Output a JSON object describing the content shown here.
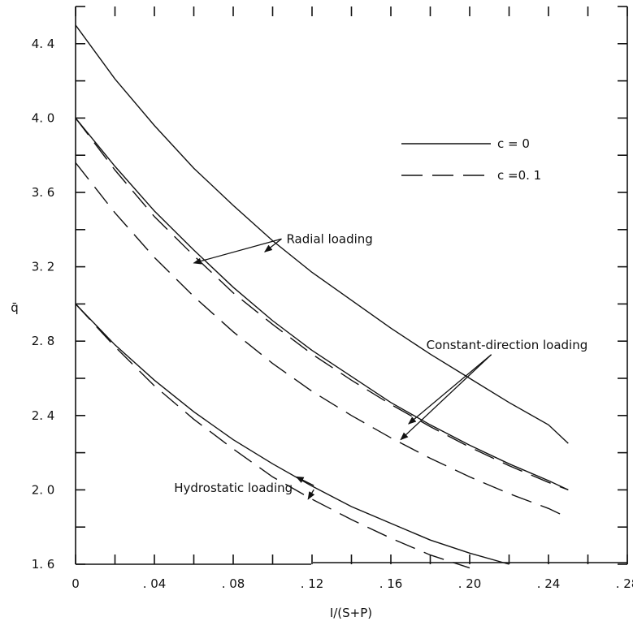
{
  "chart_data": {
    "type": "line",
    "xlabel": "I/(S+P)",
    "ylabel": "q̄",
    "xlim": [
      0,
      0.28
    ],
    "ylim": [
      1.6,
      4.6
    ],
    "x_ticks": [
      0,
      0.04,
      0.08,
      0.12,
      0.16,
      0.2,
      0.24,
      0.28
    ],
    "x_tick_labels": [
      "0",
      ". 04",
      ". 08",
      ". 12",
      ". 16",
      ". 20",
      ". 24",
      ". 28"
    ],
    "y_ticks": [
      1.6,
      2.0,
      2.4,
      2.8,
      3.2,
      3.6,
      4.0,
      4.4
    ],
    "y_tick_labels": [
      "1. 6",
      "2. 0",
      "2. 4",
      "2. 8",
      "3. 2",
      "3. 6",
      "4. 0",
      "4. 4"
    ],
    "grid": false,
    "legend": {
      "position": "top-right",
      "entries": [
        {
          "label": "c = 0",
          "style": "solid"
        },
        {
          "label": "c =0. 1",
          "style": "dashed"
        }
      ]
    },
    "series": [
      {
        "style": "solid",
        "x": [
          0,
          0.02,
          0.04,
          0.06,
          0.08,
          0.1,
          0.12,
          0.14,
          0.16,
          0.18,
          0.2,
          0.22,
          0.24,
          0.25
        ],
        "y": [
          4.5,
          4.21,
          3.96,
          3.73,
          3.53,
          3.34,
          3.17,
          3.02,
          2.87,
          2.73,
          2.6,
          2.47,
          2.35,
          2.25
        ]
      },
      {
        "style": "solid",
        "x": [
          0,
          0.02,
          0.04,
          0.06,
          0.08,
          0.1,
          0.12,
          0.14,
          0.16,
          0.18,
          0.2,
          0.22,
          0.24,
          0.25
        ],
        "y": [
          4.0,
          3.74,
          3.5,
          3.29,
          3.09,
          2.91,
          2.75,
          2.61,
          2.47,
          2.35,
          2.24,
          2.14,
          2.05,
          2.0
        ]
      },
      {
        "style": "dashed",
        "x": [
          0,
          0.02,
          0.04,
          0.06,
          0.08,
          0.1,
          0.12,
          0.14,
          0.16,
          0.18,
          0.2,
          0.22,
          0.24,
          0.25
        ],
        "y": [
          4.0,
          3.72,
          3.47,
          3.26,
          3.06,
          2.89,
          2.73,
          2.59,
          2.46,
          2.34,
          2.23,
          2.13,
          2.04,
          2.0
        ]
      },
      {
        "style": "dashed",
        "x": [
          0,
          0.02,
          0.04,
          0.06,
          0.08,
          0.1,
          0.12,
          0.14,
          0.16,
          0.18,
          0.2,
          0.22,
          0.24,
          0.25
        ],
        "y": [
          3.76,
          3.49,
          3.25,
          3.04,
          2.85,
          2.68,
          2.53,
          2.4,
          2.28,
          2.17,
          2.07,
          1.98,
          1.9,
          1.85
        ]
      },
      {
        "style": "solid",
        "x": [
          0,
          0.02,
          0.04,
          0.06,
          0.08,
          0.1,
          0.12,
          0.14,
          0.16,
          0.18,
          0.2,
          0.22
        ],
        "y": [
          3.0,
          2.78,
          2.59,
          2.42,
          2.27,
          2.14,
          2.02,
          1.91,
          1.82,
          1.73,
          1.66,
          1.6
        ]
      },
      {
        "style": "dashed",
        "x": [
          0,
          0.02,
          0.04,
          0.06,
          0.08,
          0.1,
          0.12,
          0.14,
          0.16,
          0.18,
          0.2
        ],
        "y": [
          3.0,
          2.77,
          2.56,
          2.38,
          2.22,
          2.07,
          1.95,
          1.84,
          1.74,
          1.65,
          1.58
        ]
      }
    ],
    "annotations": [
      {
        "text": "Radial loading",
        "pos": [
          0.107,
          3.35
        ],
        "arrows_to": [
          [
            0.096,
            3.28
          ],
          [
            0.06,
            3.22
          ]
        ]
      },
      {
        "text": "Constant-direction loading",
        "pos": [
          0.178,
          2.78
        ],
        "arrows_to": [
          [
            0.169,
            2.355
          ],
          [
            0.165,
            2.27
          ]
        ]
      },
      {
        "text": "Hydrostatic loading",
        "pos": [
          0.05,
          2.01
        ],
        "arrows_to": [
          [
            0.112,
            2.07
          ],
          [
            0.118,
            1.95
          ]
        ]
      }
    ]
  }
}
